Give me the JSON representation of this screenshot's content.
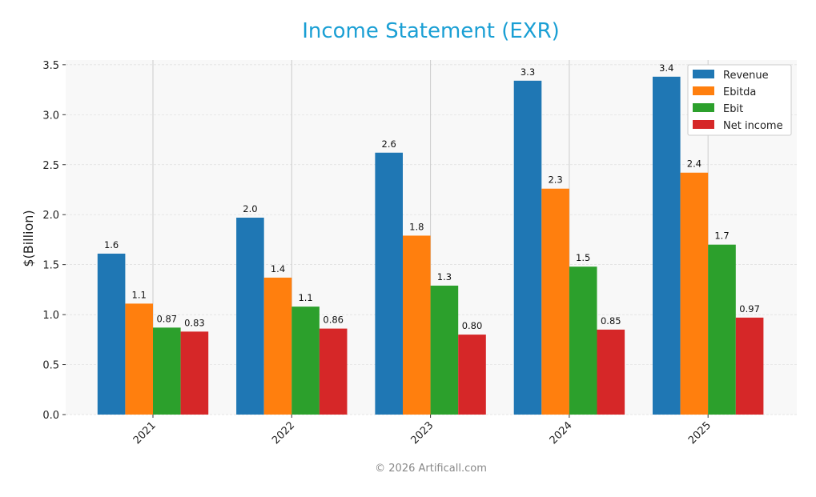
{
  "chart_data": {
    "type": "bar",
    "title": "Income Statement (EXR)",
    "xlabel": "",
    "ylabel": "$(Billion)",
    "ylim": [
      0,
      3.55
    ],
    "yticks": [
      "0.0",
      "0.5",
      "1.0",
      "1.5",
      "2.0",
      "2.5",
      "3.0",
      "3.5"
    ],
    "categories": [
      "2021",
      "2022",
      "2023",
      "2024",
      "2025"
    ],
    "grid": true,
    "legend_position": "top-right",
    "series": [
      {
        "name": "Revenue",
        "color": "#1f77b4",
        "values": [
          1.61,
          1.97,
          2.62,
          3.34,
          3.38
        ],
        "labels": [
          "1.6",
          "2.0",
          "2.6",
          "3.3",
          "3.4"
        ]
      },
      {
        "name": "Ebitda",
        "color": "#ff7f0e",
        "values": [
          1.11,
          1.37,
          1.79,
          2.26,
          2.42
        ],
        "labels": [
          "1.1",
          "1.4",
          "1.8",
          "2.3",
          "2.4"
        ]
      },
      {
        "name": "Ebit",
        "color": "#2ca02c",
        "values": [
          0.87,
          1.08,
          1.29,
          1.48,
          1.7
        ],
        "labels": [
          "0.87",
          "1.1",
          "1.3",
          "1.5",
          "1.7"
        ]
      },
      {
        "name": "Net income",
        "color": "#d62728",
        "values": [
          0.83,
          0.86,
          0.8,
          0.85,
          0.97
        ],
        "labels": [
          "0.83",
          "0.86",
          "0.80",
          "0.85",
          "0.97"
        ]
      }
    ]
  },
  "footer": "© 2026 Artificall.com",
  "title_color": "#1a9fd4"
}
